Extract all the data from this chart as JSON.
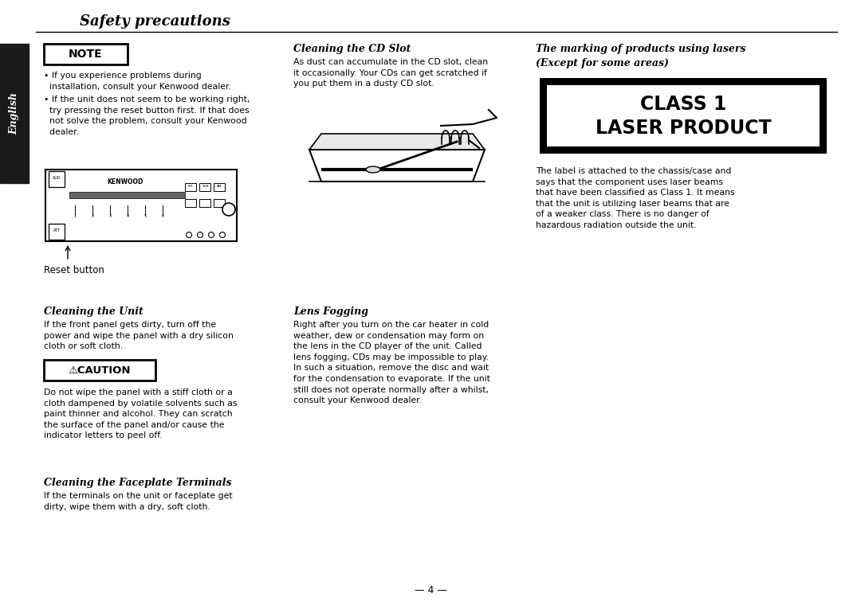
{
  "bg_color": "#ffffff",
  "page_width": 10.8,
  "page_height": 7.6,
  "title": "Safety precautions",
  "sidebar_label": "English",
  "sidebar_bg": "#1a1a1a",
  "sidebar_text_color": "#ffffff",
  "note_box_text": "NOTE",
  "note_bullet1": "• If you experience problems during\n  installation, consult your Kenwood dealer.",
  "note_bullet2": "• If the unit does not seem to be working right,\n  try pressing the reset button first. If that does\n  not solve the problem, consult your Kenwood\n  dealer.",
  "reset_button_label": "Reset button",
  "cleaning_unit_title": "Cleaning the Unit",
  "cleaning_unit_text": "If the front panel gets dirty, turn off the\npower and wipe the panel with a dry silicon\ncloth or soft cloth.",
  "caution_box_text": "⚠CAUTION",
  "caution_body": "Do not wipe the panel with a stiff cloth or a\ncloth dampened by volatile solvents such as\npaint thinner and alcohol. They can scratch\nthe surface of the panel and/or cause the\nindicator letters to peel off.",
  "cleaning_faceplate_title": "Cleaning the Faceplate Terminals",
  "cleaning_faceplate_text": "If the terminals on the unit or faceplate get\ndirty, wipe them with a dry, soft cloth.",
  "cd_slot_title": "Cleaning the CD Slot",
  "cd_slot_text": "As dust can accumulate in the CD slot, clean\nit occasionally. Your CDs can get scratched if\nyou put them in a dusty CD slot.",
  "lens_fogging_title": "Lens Fogging",
  "lens_fogging_text": "Right after you turn on the car heater in cold\nweather, dew or condensation may form on\nthe lens in the CD player of the unit. Called\nlens fogging, CDs may be impossible to play.\nIn such a situation, remove the disc and wait\nfor the condensation to evaporate. If the unit\nstill does not operate normally after a whilst,\nconsult your Kenwood dealer.",
  "laser_title_line1": "The marking of products using lasers",
  "laser_title_line2": "(Except for some areas)",
  "class_box_line1": "CLASS 1",
  "class_box_line2": "LASER PRODUCT",
  "laser_body": "The label is attached to the chassis/case and\nsays that the component uses laser beams\nthat have been classified as Class 1. It means\nthat the unit is utilizing laser beams that are\nof a weaker class. There is no danger of\nhazardous radiation outside the unit.",
  "page_number": "— 4 —",
  "text_color": "#000000",
  "class_box_bg": "#000000",
  "class_box_inner_bg": "#ffffff",
  "class_box_text_color": "#000000",
  "note_border_color": "#000000",
  "caution_border_color": "#000000",
  "title_underline_color": "#000000"
}
